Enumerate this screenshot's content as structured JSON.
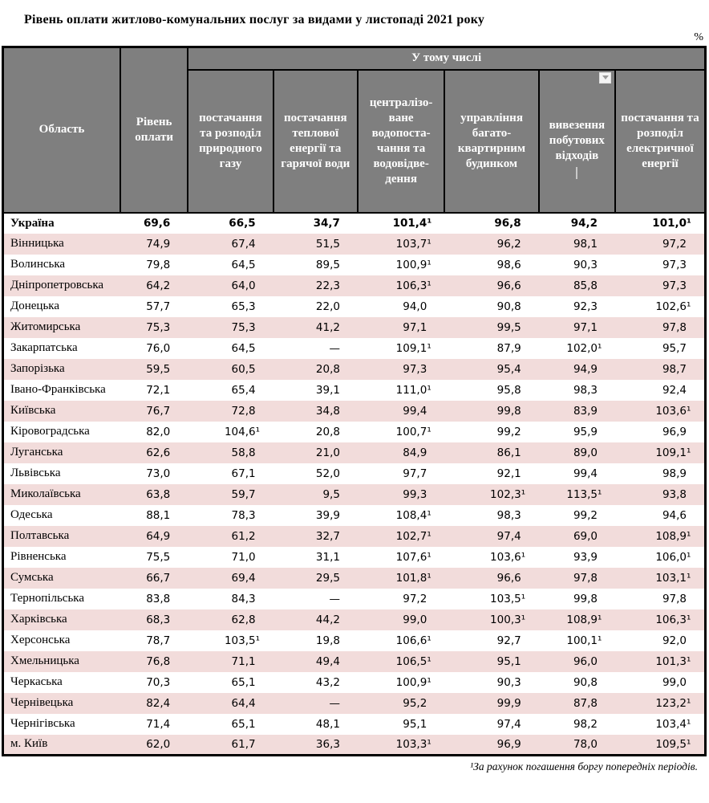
{
  "page": {
    "title": "Рівень оплати житлово-комунальних послуг за видами у листопаді 2021 року",
    "unit_label": "%",
    "footnote": "¹За рахунок погашення боргу попередніх періодів."
  },
  "colors": {
    "header_bg": "#7f7f7f",
    "header_text": "#ffffff",
    "row_alt_bg": "#f2dcdb",
    "border": "#000000"
  },
  "table": {
    "region_header": "Область",
    "level_header": "Рівень оплати",
    "group_header": "У тому числі",
    "subcolumns": [
      "постачання та розподіл природного газу",
      "постачання теплової енергії та гарячої води",
      "централізо-ване водопоста-чання та водовідве-дення",
      "управління багато-квартирним будинком",
      "вивезення побутових відходів",
      "постачання та розподіл електричної енергії"
    ],
    "filter_icon": "chevron-down",
    "rows": [
      {
        "region": "Україна",
        "bold": true,
        "values": [
          "69,6",
          "66,5",
          "34,7",
          "101,4¹",
          "96,8",
          "94,2",
          "101,0¹"
        ]
      },
      {
        "region": "Вінницька",
        "values": [
          "74,9",
          "67,4",
          "51,5",
          "103,7¹",
          "96,2",
          "98,1",
          "97,2"
        ]
      },
      {
        "region": "Волинська",
        "values": [
          "79,8",
          "64,5",
          "89,5",
          "100,9¹",
          "98,6",
          "90,3",
          "97,3"
        ]
      },
      {
        "region": "Дніпропетровська",
        "values": [
          "64,2",
          "64,0",
          "22,3",
          "106,3¹",
          "96,6",
          "85,8",
          "97,3"
        ]
      },
      {
        "region": "Донецька",
        "values": [
          "57,7",
          "65,3",
          "22,0",
          "94,0",
          "90,8",
          "92,3",
          "102,6¹"
        ]
      },
      {
        "region": "Житомирська",
        "values": [
          "75,3",
          "75,3",
          "41,2",
          "97,1",
          "99,5",
          "97,1",
          "97,8"
        ]
      },
      {
        "region": "Закарпатська",
        "values": [
          "76,0",
          "64,5",
          "—",
          "109,1¹",
          "87,9",
          "102,0¹",
          "95,7"
        ]
      },
      {
        "region": "Запорізька",
        "values": [
          "59,5",
          "60,5",
          "20,8",
          "97,3",
          "95,4",
          "94,9",
          "98,7"
        ]
      },
      {
        "region": "Івано-Франківська",
        "values": [
          "72,1",
          "65,4",
          "39,1",
          "111,0¹",
          "95,8",
          "98,3",
          "92,4"
        ]
      },
      {
        "region": "Київська",
        "values": [
          "76,7",
          "72,8",
          "34,8",
          "99,4",
          "99,8",
          "83,9",
          "103,6¹"
        ]
      },
      {
        "region": "Кіровоградська",
        "values": [
          "82,0",
          "104,6¹",
          "20,8",
          "100,7¹",
          "99,2",
          "95,9",
          "96,9"
        ]
      },
      {
        "region": "Луганська",
        "values": [
          "62,6",
          "58,8",
          "21,0",
          "84,9",
          "86,1",
          "89,0",
          "109,1¹"
        ]
      },
      {
        "region": "Львівська",
        "values": [
          "73,0",
          "67,1",
          "52,0",
          "97,7",
          "92,1",
          "99,4",
          "98,9"
        ]
      },
      {
        "region": "Миколаївська",
        "values": [
          "63,8",
          "59,7",
          "9,5",
          "99,3",
          "102,3¹",
          "113,5¹",
          "93,8"
        ]
      },
      {
        "region": "Одеська",
        "values": [
          "88,1",
          "78,3",
          "39,9",
          "108,4¹",
          "98,3",
          "99,2",
          "94,6"
        ]
      },
      {
        "region": "Полтавська",
        "values": [
          "64,9",
          "61,2",
          "32,7",
          "102,7¹",
          "97,4",
          "69,0",
          "108,9¹"
        ]
      },
      {
        "region": "Рівненська",
        "values": [
          "75,5",
          "71,0",
          "31,1",
          "107,6¹",
          "103,6¹",
          "93,9",
          "106,0¹"
        ]
      },
      {
        "region": "Сумська",
        "values": [
          "66,7",
          "69,4",
          "29,5",
          "101,8¹",
          "96,6",
          "97,8",
          "103,1¹"
        ]
      },
      {
        "region": "Тернопільська",
        "values": [
          "83,8",
          "84,3",
          "—",
          "97,2",
          "103,5¹",
          "99,8",
          "97,8"
        ]
      },
      {
        "region": "Харківська",
        "values": [
          "68,3",
          "62,8",
          "44,2",
          "99,0",
          "100,3¹",
          "108,9¹",
          "106,3¹"
        ]
      },
      {
        "region": "Херсонська",
        "values": [
          "78,7",
          "103,5¹",
          "19,8",
          "106,6¹",
          "92,7",
          "100,1¹",
          "92,0"
        ]
      },
      {
        "region": "Хмельницька",
        "values": [
          "76,8",
          "71,1",
          "49,4",
          "106,5¹",
          "95,1",
          "96,0",
          "101,3¹"
        ]
      },
      {
        "region": "Черкаська",
        "values": [
          "70,3",
          "65,1",
          "43,2",
          "100,9¹",
          "90,3",
          "90,8",
          "99,0"
        ]
      },
      {
        "region": "Чернівецька",
        "values": [
          "82,4",
          "64,4",
          "—",
          "95,2",
          "99,9",
          "87,8",
          "123,2¹"
        ]
      },
      {
        "region": "Чернігівська",
        "values": [
          "71,4",
          "65,1",
          "48,1",
          "95,1",
          "97,4",
          "98,2",
          "103,4¹"
        ]
      },
      {
        "region": "м. Київ",
        "values": [
          "62,0",
          "61,7",
          "36,3",
          "103,3¹",
          "96,9",
          "78,0",
          "109,5¹"
        ]
      }
    ]
  }
}
